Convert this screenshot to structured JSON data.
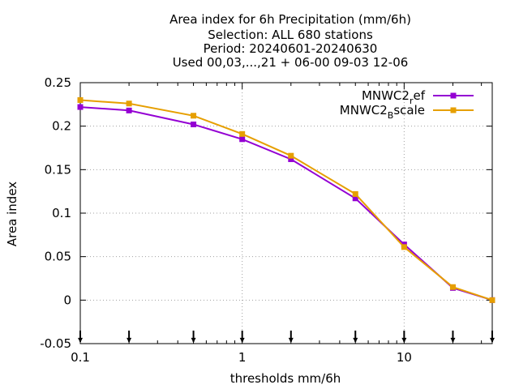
{
  "chart_data": {
    "type": "line",
    "title_lines": [
      "Area index  for 6h Precipitation (mm/6h)",
      "Selection: ALL    680 stations",
      "Period: 20240601-20240630",
      "Used 00,03,...,21 + 06-00 09-03 12-06"
    ],
    "xlabel": "thresholds mm/6h",
    "ylabel": "Area index",
    "x_scale": "log",
    "xlim": [
      0.1,
      35
    ],
    "ylim": [
      -0.05,
      0.25
    ],
    "x_ticks": [
      0.1,
      1,
      10
    ],
    "x_tick_labels": [
      "0.1",
      "1",
      "10"
    ],
    "y_ticks": [
      -0.05,
      0,
      0.05,
      0.1,
      0.15,
      0.2,
      0.25
    ],
    "y_tick_labels": [
      "-0.05",
      "0",
      "0.05",
      "0.1",
      "0.15",
      "0.2",
      "0.25"
    ],
    "marker_arrows_x": [
      0.1,
      0.2,
      0.5,
      1,
      2,
      5,
      10,
      20,
      35
    ],
    "grid": true,
    "legend_position": "top-right",
    "x": [
      0.1,
      0.2,
      0.5,
      1,
      2,
      5,
      10,
      20,
      35
    ],
    "series": [
      {
        "name_main": "MNWC2",
        "name_sub": "r",
        "name_tail": "ef",
        "color": "#9400D3",
        "values": [
          0.222,
          0.218,
          0.202,
          0.185,
          0.162,
          0.117,
          0.064,
          0.014,
          0.0
        ]
      },
      {
        "name_main": "MNWC2",
        "name_sub": "B",
        "name_tail": "scale",
        "color": "#E69F00",
        "values": [
          0.23,
          0.226,
          0.212,
          0.191,
          0.166,
          0.122,
          0.061,
          0.015,
          0.0
        ]
      }
    ]
  }
}
